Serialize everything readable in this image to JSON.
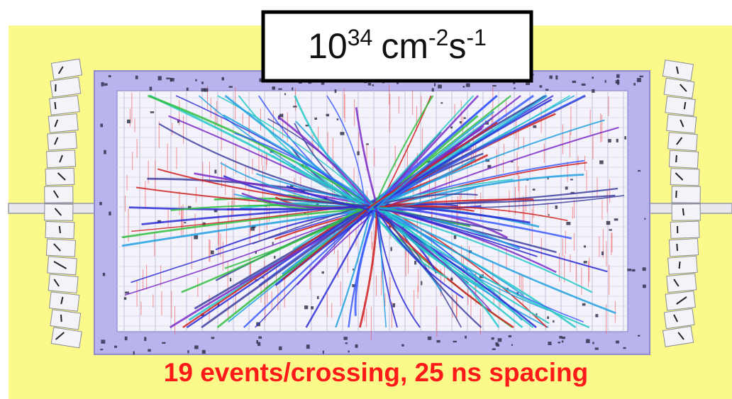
{
  "label": {
    "base": "10",
    "exponent": "34",
    "unit1": "cm",
    "unit1_exponent": "-2",
    "unit2": "s",
    "unit2_exponent": "-1"
  },
  "caption": "19 events/crossing, 25 ns spacing"
}
